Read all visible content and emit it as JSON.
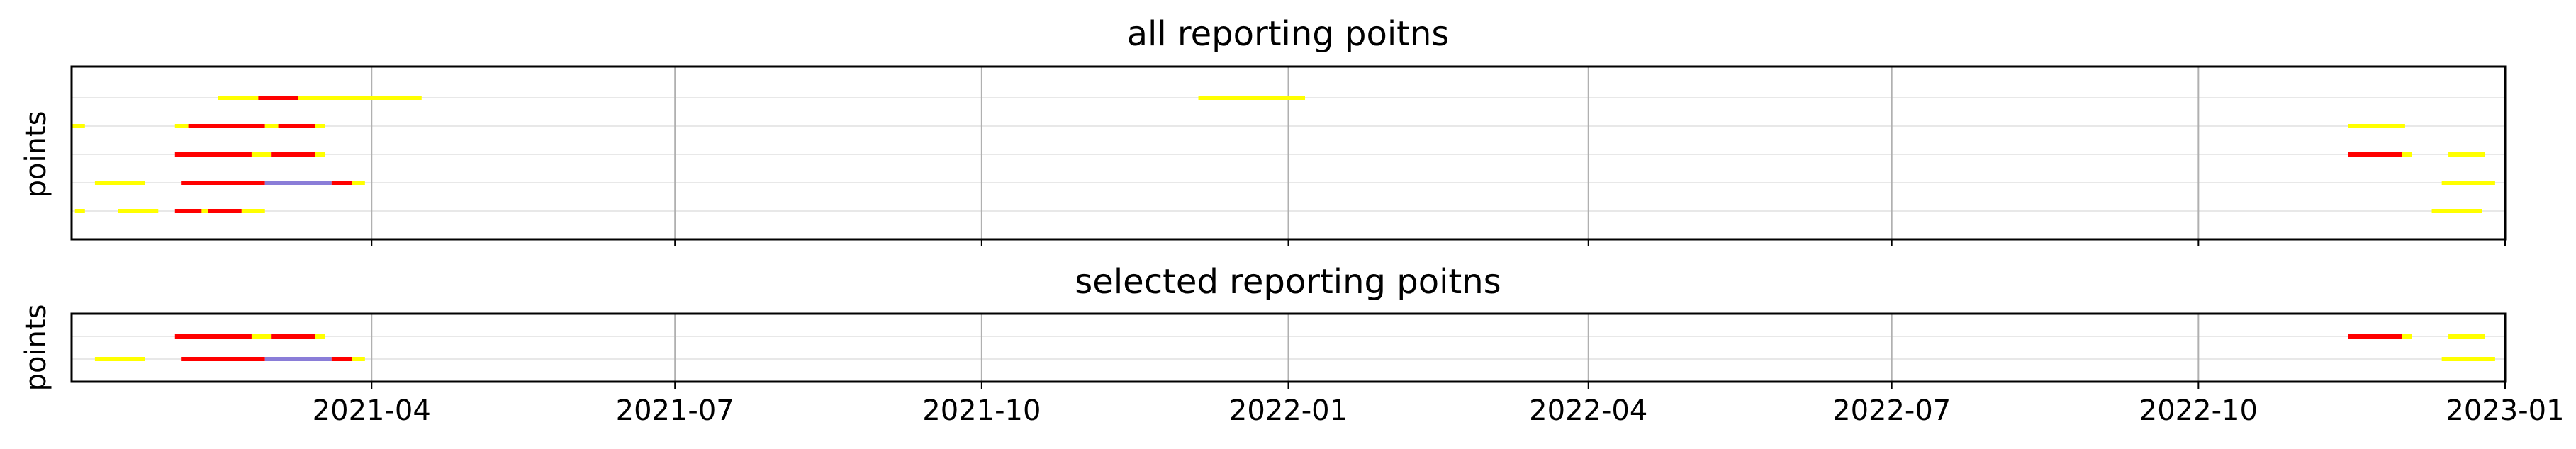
{
  "chart_data": [
    {
      "type": "timeline",
      "title": "all reporting poitns",
      "ylabel": "points",
      "xlim": [
        "2021-01-01",
        "2023-01-01"
      ],
      "rows": 5,
      "grid": {
        "x": true,
        "y": true
      },
      "series": [
        {
          "row": 0,
          "segments": [
            {
              "start": "2021-01-02",
              "end": "2021-01-05",
              "color": "#ffff00"
            },
            {
              "start": "2021-01-15",
              "end": "2021-01-27",
              "color": "#ffff00"
            },
            {
              "start": "2021-02-01",
              "end": "2021-02-09",
              "color": "#ff0000"
            },
            {
              "start": "2021-02-09",
              "end": "2021-02-11",
              "color": "#ffff00"
            },
            {
              "start": "2021-02-11",
              "end": "2021-02-21",
              "color": "#ff0000"
            },
            {
              "start": "2021-02-21",
              "end": "2021-02-28",
              "color": "#ffff00"
            },
            {
              "start": "2022-12-10",
              "end": "2022-12-25",
              "color": "#ffff00"
            }
          ]
        },
        {
          "row": 1,
          "segments": [
            {
              "start": "2021-01-08",
              "end": "2021-01-23",
              "color": "#ffff00"
            },
            {
              "start": "2021-02-03",
              "end": "2021-02-28",
              "color": "#ff0000"
            },
            {
              "start": "2021-02-28",
              "end": "2021-03-20",
              "color": "#8a7dd8"
            },
            {
              "start": "2021-03-20",
              "end": "2021-03-26",
              "color": "#ff0000"
            },
            {
              "start": "2021-03-26",
              "end": "2021-03-30",
              "color": "#ffff00"
            },
            {
              "start": "2022-12-13",
              "end": "2022-12-29",
              "color": "#ffff00"
            }
          ]
        },
        {
          "row": 2,
          "segments": [
            {
              "start": "2021-02-01",
              "end": "2021-02-24",
              "color": "#ff0000"
            },
            {
              "start": "2021-02-24",
              "end": "2021-03-02",
              "color": "#ffff00"
            },
            {
              "start": "2021-03-02",
              "end": "2021-03-15",
              "color": "#ff0000"
            },
            {
              "start": "2021-03-15",
              "end": "2021-03-18",
              "color": "#ffff00"
            },
            {
              "start": "2022-11-15",
              "end": "2022-12-01",
              "color": "#ff0000"
            },
            {
              "start": "2022-12-01",
              "end": "2022-12-04",
              "color": "#ffff00"
            },
            {
              "start": "2022-12-15",
              "end": "2022-12-26",
              "color": "#ffff00"
            }
          ]
        },
        {
          "row": 3,
          "segments": [
            {
              "start": "2021-01-01",
              "end": "2021-01-05",
              "color": "#ffff00"
            },
            {
              "start": "2021-02-01",
              "end": "2021-02-05",
              "color": "#ffff00"
            },
            {
              "start": "2021-02-05",
              "end": "2021-02-28",
              "color": "#ff0000"
            },
            {
              "start": "2021-02-28",
              "end": "2021-03-04",
              "color": "#ffff00"
            },
            {
              "start": "2021-03-04",
              "end": "2021-03-15",
              "color": "#ff0000"
            },
            {
              "start": "2021-03-15",
              "end": "2021-03-18",
              "color": "#ffff00"
            },
            {
              "start": "2022-11-15",
              "end": "2022-12-02",
              "color": "#ffff00"
            }
          ]
        },
        {
          "row": 4,
          "segments": [
            {
              "start": "2021-02-14",
              "end": "2021-02-26",
              "color": "#ffff00"
            },
            {
              "start": "2021-02-26",
              "end": "2021-03-10",
              "color": "#ff0000"
            },
            {
              "start": "2021-03-10",
              "end": "2021-04-16",
              "color": "#ffff00"
            },
            {
              "start": "2021-12-05",
              "end": "2022-01-06",
              "color": "#ffff00"
            }
          ]
        }
      ]
    },
    {
      "type": "timeline",
      "title": "selected reporting poitns",
      "ylabel": "points",
      "xlim": [
        "2021-01-01",
        "2023-01-01"
      ],
      "rows": 2,
      "grid": {
        "x": true,
        "y": true
      },
      "xticks": [
        "2021-04",
        "2021-07",
        "2021-10",
        "2022-01",
        "2022-04",
        "2022-07",
        "2022-10",
        "2023-01"
      ],
      "series": [
        {
          "row": 0,
          "segments": [
            {
              "start": "2021-01-08",
              "end": "2021-01-23",
              "color": "#ffff00"
            },
            {
              "start": "2021-02-03",
              "end": "2021-02-28",
              "color": "#ff0000"
            },
            {
              "start": "2021-02-28",
              "end": "2021-03-20",
              "color": "#8a7dd8"
            },
            {
              "start": "2021-03-20",
              "end": "2021-03-26",
              "color": "#ff0000"
            },
            {
              "start": "2021-03-26",
              "end": "2021-03-30",
              "color": "#ffff00"
            },
            {
              "start": "2022-12-13",
              "end": "2022-12-29",
              "color": "#ffff00"
            }
          ]
        },
        {
          "row": 1,
          "segments": [
            {
              "start": "2021-02-01",
              "end": "2021-02-24",
              "color": "#ff0000"
            },
            {
              "start": "2021-02-24",
              "end": "2021-03-02",
              "color": "#ffff00"
            },
            {
              "start": "2021-03-02",
              "end": "2021-03-15",
              "color": "#ff0000"
            },
            {
              "start": "2021-03-15",
              "end": "2021-03-18",
              "color": "#ffff00"
            },
            {
              "start": "2022-11-15",
              "end": "2022-12-01",
              "color": "#ff0000"
            },
            {
              "start": "2022-12-01",
              "end": "2022-12-04",
              "color": "#ffff00"
            },
            {
              "start": "2022-12-15",
              "end": "2022-12-26",
              "color": "#ffff00"
            }
          ]
        }
      ]
    }
  ]
}
